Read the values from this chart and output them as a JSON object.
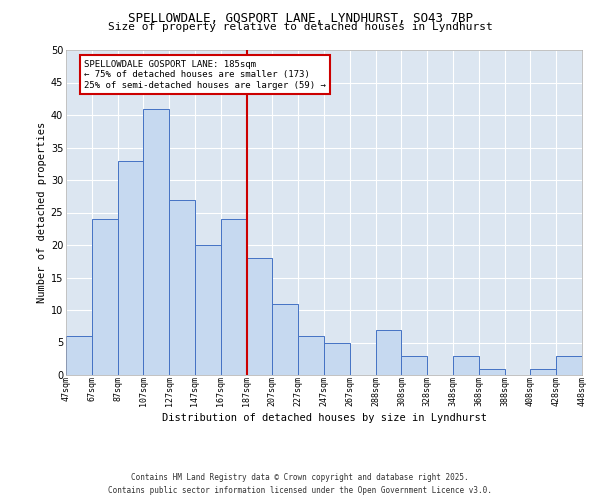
{
  "title": "SPELLOWDALE, GOSPORT LANE, LYNDHURST, SO43 7BP",
  "subtitle": "Size of property relative to detached houses in Lyndhurst",
  "xlabel": "Distribution of detached houses by size in Lyndhurst",
  "ylabel": "Number of detached properties",
  "bar_values": [
    6,
    24,
    33,
    41,
    27,
    20,
    24,
    18,
    11,
    6,
    5,
    0,
    7,
    3,
    0,
    3,
    1,
    0,
    1,
    3
  ],
  "categories": [
    "47sqm",
    "67sqm",
    "87sqm",
    "107sqm",
    "127sqm",
    "147sqm",
    "167sqm",
    "187sqm",
    "207sqm",
    "227sqm",
    "247sqm",
    "267sqm",
    "288sqm",
    "308sqm",
    "328sqm",
    "348sqm",
    "368sqm",
    "388sqm",
    "408sqm",
    "428sqm",
    "448sqm"
  ],
  "bar_color": "#c6d9f0",
  "bar_edge_color": "#4472c4",
  "background_color": "#dce6f1",
  "grid_color": "#ffffff",
  "vline_color": "#cc0000",
  "annotation_title": "SPELLOWDALE GOSPORT LANE: 185sqm",
  "annotation_line1": "← 75% of detached houses are smaller (173)",
  "annotation_line2": "25% of semi-detached houses are larger (59) →",
  "annotation_box_color": "#cc0000",
  "ylim": [
    0,
    50
  ],
  "yticks": [
    0,
    5,
    10,
    15,
    20,
    25,
    30,
    35,
    40,
    45,
    50
  ],
  "footer_line1": "Contains HM Land Registry data © Crown copyright and database right 2025.",
  "footer_line2": "Contains public sector information licensed under the Open Government Licence v3.0."
}
